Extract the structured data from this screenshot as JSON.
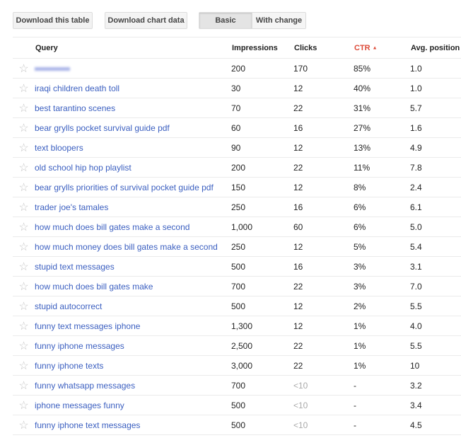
{
  "toolbar": {
    "download_table": "Download this table",
    "download_chart": "Download chart data",
    "basic": "Basic",
    "with_change": "With change"
  },
  "columns": {
    "query": "Query",
    "impressions": "Impressions",
    "clicks": "Clicks",
    "ctr": "CTR",
    "ctr_sort": "▲",
    "avg_position": "Avg. position"
  },
  "accent": "#dd4b39",
  "link_color": "#3b5fc0",
  "rows": [
    {
      "query": "",
      "blurred": true,
      "impressions": "200",
      "clicks": "170",
      "ctr": "85%",
      "position": "1.0"
    },
    {
      "query": "iraqi children death toll",
      "impressions": "30",
      "clicks": "12",
      "ctr": "40%",
      "position": "1.0"
    },
    {
      "query": "best tarantino scenes",
      "impressions": "70",
      "clicks": "22",
      "ctr": "31%",
      "position": "5.7"
    },
    {
      "query": "bear grylls pocket survival guide pdf",
      "impressions": "60",
      "clicks": "16",
      "ctr": "27%",
      "position": "1.6"
    },
    {
      "query": "text bloopers",
      "impressions": "90",
      "clicks": "12",
      "ctr": "13%",
      "position": "4.9"
    },
    {
      "query": "old school hip hop playlist",
      "impressions": "200",
      "clicks": "22",
      "ctr": "11%",
      "position": "7.8"
    },
    {
      "query": "bear grylls priorities of survival pocket guide pdf",
      "impressions": "150",
      "clicks": "12",
      "ctr": "8%",
      "position": "2.4"
    },
    {
      "query": "trader joe's tamales",
      "impressions": "250",
      "clicks": "16",
      "ctr": "6%",
      "position": "6.1"
    },
    {
      "query": "how much does bill gates make a second",
      "impressions": "1,000",
      "clicks": "60",
      "ctr": "6%",
      "position": "5.0"
    },
    {
      "query": "how much money does bill gates make a second",
      "impressions": "250",
      "clicks": "12",
      "ctr": "5%",
      "position": "5.4"
    },
    {
      "query": "stupid text messages",
      "impressions": "500",
      "clicks": "16",
      "ctr": "3%",
      "position": "3.1"
    },
    {
      "query": "how much does bill gates make",
      "impressions": "700",
      "clicks": "22",
      "ctr": "3%",
      "position": "7.0"
    },
    {
      "query": "stupid autocorrect",
      "impressions": "500",
      "clicks": "12",
      "ctr": "2%",
      "position": "5.5"
    },
    {
      "query": "funny text messages iphone",
      "impressions": "1,300",
      "clicks": "12",
      "ctr": "1%",
      "position": "4.0"
    },
    {
      "query": "funny iphone messages",
      "impressions": "2,500",
      "clicks": "22",
      "ctr": "1%",
      "position": "5.5"
    },
    {
      "query": "funny iphone texts",
      "impressions": "3,000",
      "clicks": "22",
      "ctr": "1%",
      "position": "10"
    },
    {
      "query": "funny whatsapp messages",
      "impressions": "700",
      "clicks": "<10",
      "ctr": "-",
      "position": "3.2"
    },
    {
      "query": "iphone messages funny",
      "impressions": "500",
      "clicks": "<10",
      "ctr": "-",
      "position": "3.4"
    },
    {
      "query": "funny iphone text messages",
      "impressions": "500",
      "clicks": "<10",
      "ctr": "-",
      "position": "4.5"
    }
  ]
}
